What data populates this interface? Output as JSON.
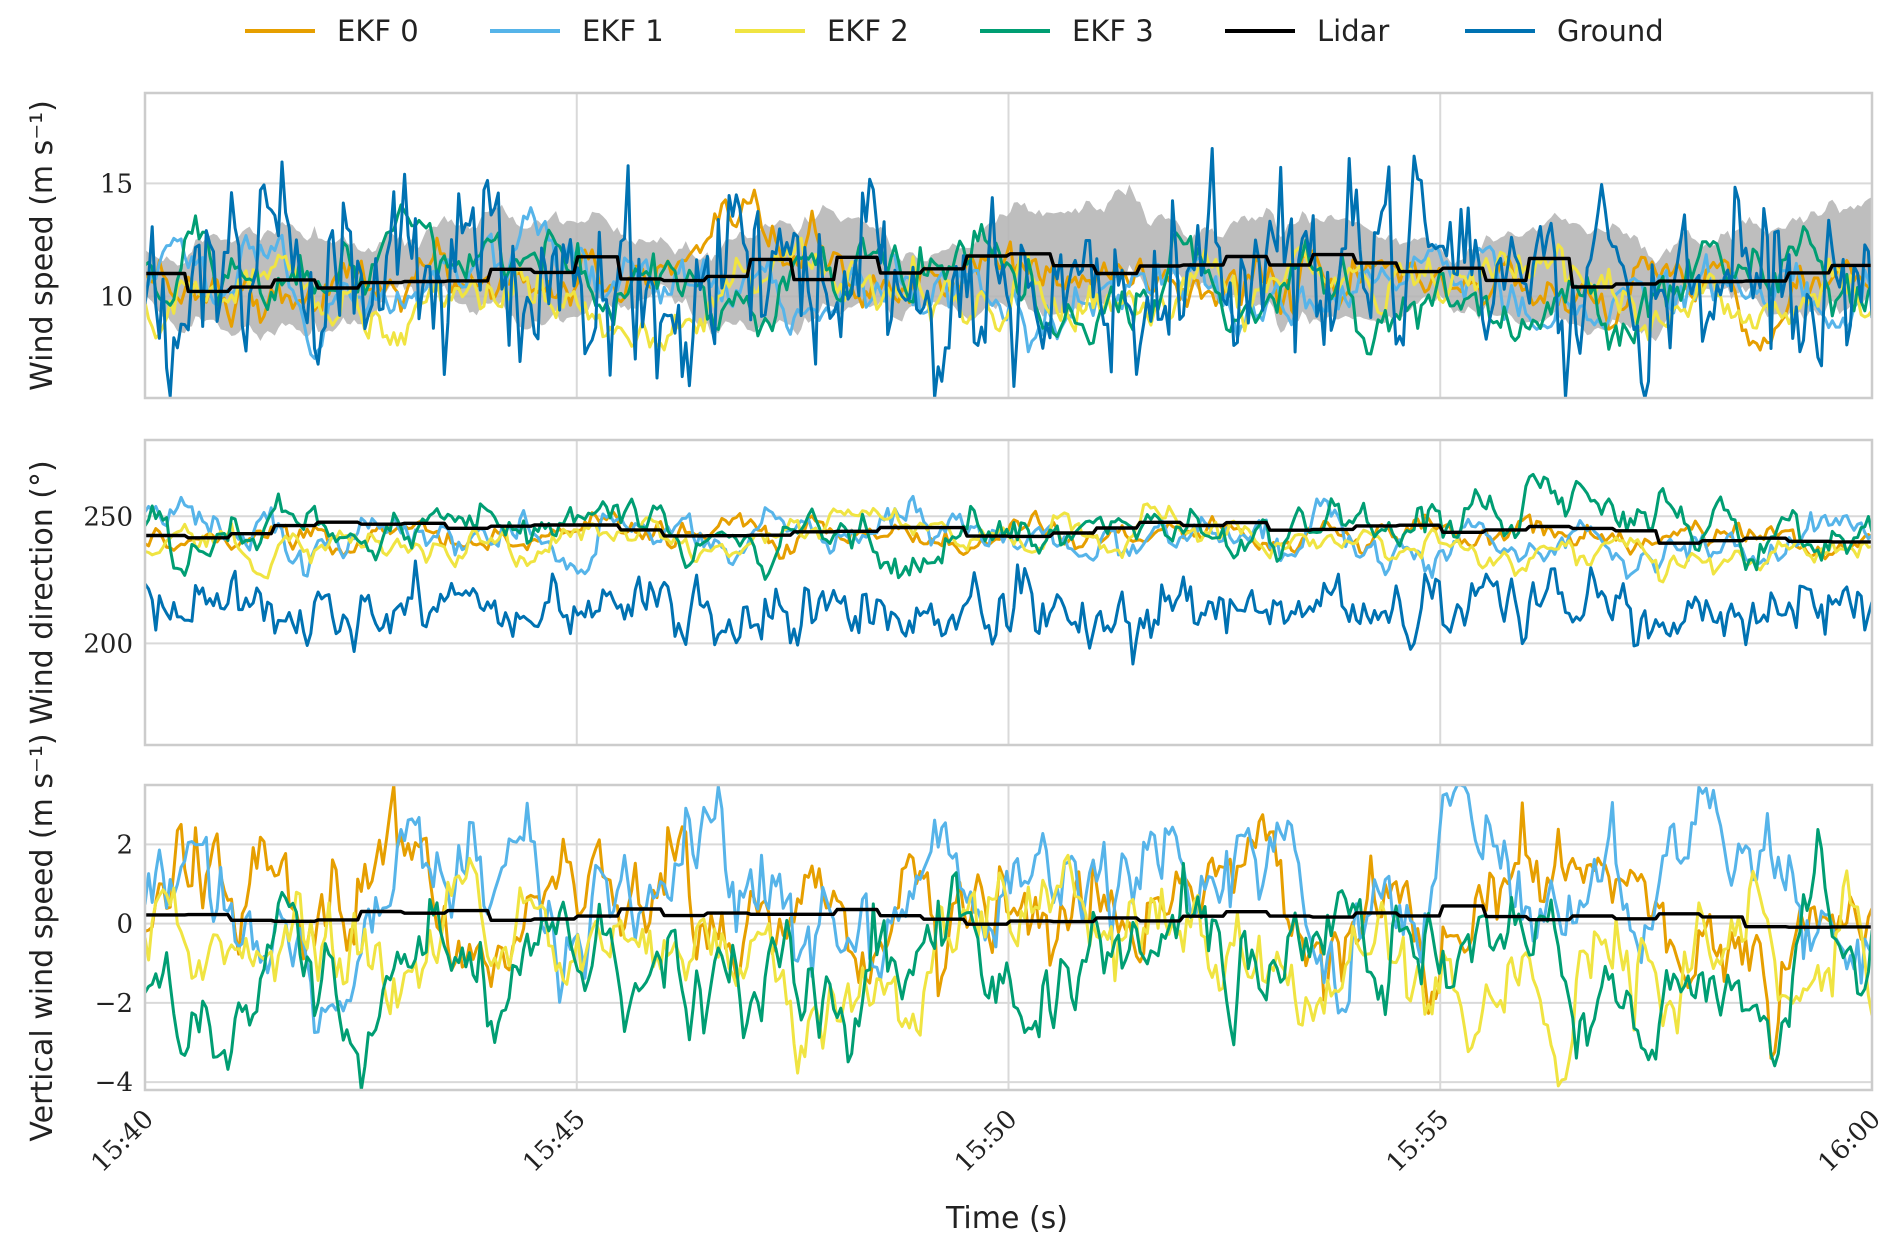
{
  "colors": {
    "EKF 0": "#e69f00",
    "EKF 1": "#56b4e9",
    "EKF 2": "#f0e442",
    "EKF 3": "#009e73",
    "Lidar": "#000000",
    "Ground": "#0072b2",
    "band": "#b3b3b3",
    "grid": "#d9d9d9",
    "frame": "#cccccc"
  },
  "legend": {
    "entries": [
      "EKF 0",
      "EKF 1",
      "EKF 2",
      "EKF 3",
      "Lidar",
      "Ground"
    ],
    "placement": "top-center"
  },
  "chart_data": {
    "type": "line",
    "x_ticks": [
      "15:40",
      "15:45",
      "15:50",
      "15:55",
      "16:00"
    ],
    "xlim": [
      "15:40",
      "16:00"
    ],
    "xlabel": "Time (s)",
    "grid": true,
    "panels": [
      {
        "key": "speed",
        "ylabel": "Wind speed (m s⁻¹)",
        "ylim": [
          5.5,
          19.0
        ],
        "yticks": [
          10,
          15
        ],
        "shaded_band": {
          "center": 11,
          "half_width": 1.6,
          "description_visible": false
        },
        "series": [
          {
            "name": "EKF 0",
            "mean": 10.6,
            "std": 1.0
          },
          {
            "name": "EKF 1",
            "mean": 10.5,
            "std": 1.1
          },
          {
            "name": "EKF 2",
            "mean": 9.9,
            "std": 1.0
          },
          {
            "name": "EKF 3",
            "mean": 10.9,
            "std": 1.2
          },
          {
            "name": "Lidar",
            "mean": 11.0,
            "std": 0.7
          },
          {
            "name": "Ground",
            "mean": 11.0,
            "std": 2.2
          }
        ]
      },
      {
        "key": "direction",
        "ylabel": "Wind direction (°)",
        "ylim": [
          160,
          280
        ],
        "yticks": [
          200,
          250
        ],
        "series": [
          {
            "name": "EKF 0",
            "mean": 242,
            "std": 5
          },
          {
            "name": "EKF 1",
            "mean": 243,
            "std": 7
          },
          {
            "name": "EKF 2",
            "mean": 241,
            "std": 5
          },
          {
            "name": "EKF 3",
            "mean": 246,
            "std": 8
          },
          {
            "name": "Lidar",
            "mean": 243.5,
            "std": 2
          },
          {
            "name": "Ground",
            "mean": 213,
            "std": 7
          }
        ]
      },
      {
        "key": "vertical",
        "ylabel": "Vertical wind speed (m s⁻¹)",
        "ylim": [
          -4.2,
          3.5
        ],
        "yticks": [
          -4,
          -2,
          0,
          2
        ],
        "series": [
          {
            "name": "EKF 0",
            "mean": 0.4,
            "std": 1.2
          },
          {
            "name": "EKF 1",
            "mean": 0.5,
            "std": 1.2
          },
          {
            "name": "EKF 2",
            "mean": -0.9,
            "std": 1.1
          },
          {
            "name": "EKF 3",
            "mean": -1.1,
            "std": 1.1
          },
          {
            "name": "Lidar",
            "mean": 0.2,
            "std": 0.15
          }
        ]
      }
    ]
  }
}
